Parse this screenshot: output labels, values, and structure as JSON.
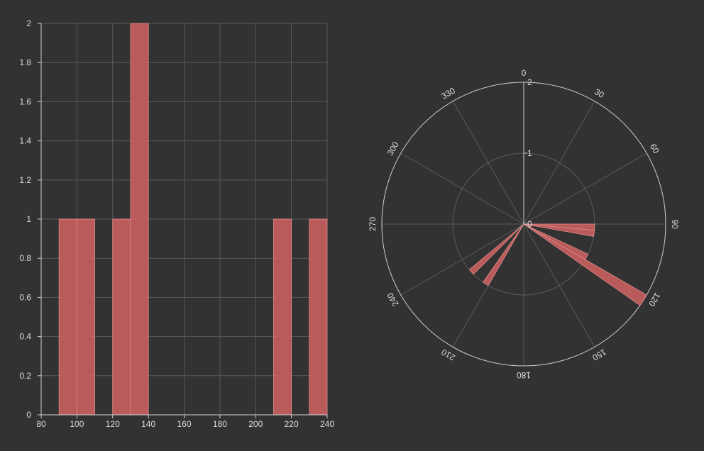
{
  "colors": {
    "background": "#323232",
    "bar_fill": "#c95f5f",
    "bar_edge": "#e08a8a",
    "grid": "#5a5a5a",
    "axis": "#d0d0d0",
    "text": "#dcdcdc"
  },
  "chart_data": [
    {
      "type": "bar",
      "subtype": "histogram",
      "bins": [
        {
          "x0": 90,
          "x1": 100,
          "value": 1
        },
        {
          "x0": 100,
          "x1": 110,
          "value": 1
        },
        {
          "x0": 120,
          "x1": 130,
          "value": 1
        },
        {
          "x0": 130,
          "x1": 140,
          "value": 2
        },
        {
          "x0": 210,
          "x1": 220,
          "value": 1
        },
        {
          "x0": 230,
          "x1": 240,
          "value": 1
        }
      ],
      "xlim": [
        80,
        240
      ],
      "ylim": [
        0,
        2
      ],
      "xticks": [
        80,
        100,
        120,
        140,
        160,
        180,
        200,
        220,
        240
      ],
      "xtick_labels": [
        "80",
        "100",
        "120",
        "140",
        "160",
        "180",
        "200",
        "220",
        "240"
      ],
      "yticks": [
        0,
        0.2,
        0.4,
        0.6,
        0.8,
        1,
        1.2,
        1.4,
        1.6,
        1.8,
        2
      ],
      "ytick_labels": [
        "0",
        "0.2",
        "0.4",
        "0.6",
        "0.8",
        "1",
        "1.2",
        "1.4",
        "1.6",
        "1.8",
        "2"
      ],
      "grid": true,
      "title": "",
      "xlabel": "",
      "ylabel": ""
    },
    {
      "type": "bar",
      "subtype": "polar",
      "theta_zero": "top",
      "theta_direction": "clockwise",
      "bars": [
        {
          "theta_start": 90,
          "theta_end": 95,
          "r": 1
        },
        {
          "theta_start": 95,
          "theta_end": 100,
          "r": 1
        },
        {
          "theta_start": 115,
          "theta_end": 120,
          "r": 1
        },
        {
          "theta_start": 120,
          "theta_end": 125,
          "r": 2
        },
        {
          "theta_start": 210,
          "theta_end": 215,
          "r": 1
        },
        {
          "theta_start": 225,
          "theta_end": 230,
          "r": 1
        }
      ],
      "rlim": [
        0,
        2
      ],
      "rticks": [
        0,
        1,
        2
      ],
      "rtick_labels": [
        "0",
        "1",
        "2"
      ],
      "theta_ticks": [
        0,
        30,
        60,
        90,
        120,
        150,
        180,
        210,
        240,
        270,
        300,
        330
      ],
      "theta_tick_labels": [
        "0",
        "30",
        "60",
        "90",
        "120",
        "150",
        "180",
        "210",
        "240",
        "270",
        "300",
        "330"
      ],
      "grid": true,
      "title": ""
    }
  ]
}
